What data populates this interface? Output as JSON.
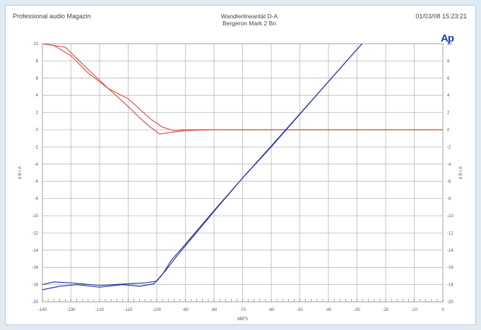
{
  "header": {
    "left": "Professional audio Magazin",
    "center_line1": "Wandlerlinearität D-A",
    "center_line2": "Bergeron Mark 2 Bn",
    "right": "01/03/08 15:23:21"
  },
  "logo_text": "Ap",
  "colors": {
    "red_series": "#d9534a",
    "blue_series": "#2c3a9e",
    "grid": "#b8b8b8",
    "background": "#dfeaf3"
  },
  "chart_data": {
    "type": "line",
    "xlabel": "dBFS",
    "ylabel_left": "d B r A",
    "ylabel_right": "d B r A",
    "xlim": [
      -140,
      0
    ],
    "ylim": [
      -20,
      10
    ],
    "x_ticks": [
      -140,
      -130,
      -120,
      -110,
      -100,
      -90,
      -80,
      -70,
      -60,
      -50,
      -40,
      -30,
      -20,
      -10,
      0
    ],
    "y_ticks_left": [
      10,
      8,
      6,
      4,
      2,
      0,
      -2,
      -4,
      -6,
      -8,
      -10,
      -12,
      -14,
      -16,
      -18,
      -20
    ],
    "y_ticks_right": [
      10,
      8,
      6,
      4,
      2,
      0,
      -2,
      -4,
      -6,
      -8,
      -10,
      -12,
      -14,
      -16,
      -18,
      -20
    ],
    "grid": true,
    "series": [
      {
        "color": "red",
        "x": [
          -140,
          -136,
          -130,
          -124,
          -117,
          -110,
          -106,
          -102,
          -98,
          -94,
          -90,
          -80,
          0
        ],
        "y": [
          10.0,
          9.8,
          8.6,
          6.6,
          4.8,
          3.6,
          2.4,
          1.2,
          0.3,
          -0.1,
          0.0,
          0.0,
          0.0
        ]
      },
      {
        "color": "red",
        "x": [
          -140,
          -132,
          -124,
          -116,
          -110,
          -106,
          -103,
          -99,
          -95,
          -90,
          -80,
          0
        ],
        "y": [
          10.0,
          9.6,
          7.0,
          4.5,
          2.7,
          1.4,
          0.5,
          -0.5,
          -0.3,
          -0.1,
          0.0,
          0.0
        ]
      },
      {
        "color": "blue",
        "x": [
          -140,
          -136,
          -130,
          -120,
          -110,
          -104,
          -100,
          -98,
          -95,
          -90,
          -80,
          -70,
          -60,
          -40,
          -20,
          0
        ],
        "y": [
          -18.0,
          -17.7,
          -17.8,
          -18.1,
          -17.9,
          -17.8,
          -17.6,
          -16.8,
          -15.2,
          -13.3,
          -9.4,
          -5.6,
          -1.9,
          5.6,
          13.1,
          20.0
        ]
      },
      {
        "color": "blue",
        "x": [
          -140,
          -134,
          -128,
          -120,
          -112,
          -106,
          -101,
          -97,
          -93,
          -88,
          -80,
          -70,
          -60,
          -40,
          -20,
          0
        ],
        "y": [
          -18.6,
          -18.2,
          -18.0,
          -18.3,
          -18.0,
          -18.2,
          -17.9,
          -16.4,
          -14.7,
          -12.7,
          -9.5,
          -5.6,
          -2.0,
          5.6,
          13.1,
          20.0
        ]
      }
    ]
  }
}
